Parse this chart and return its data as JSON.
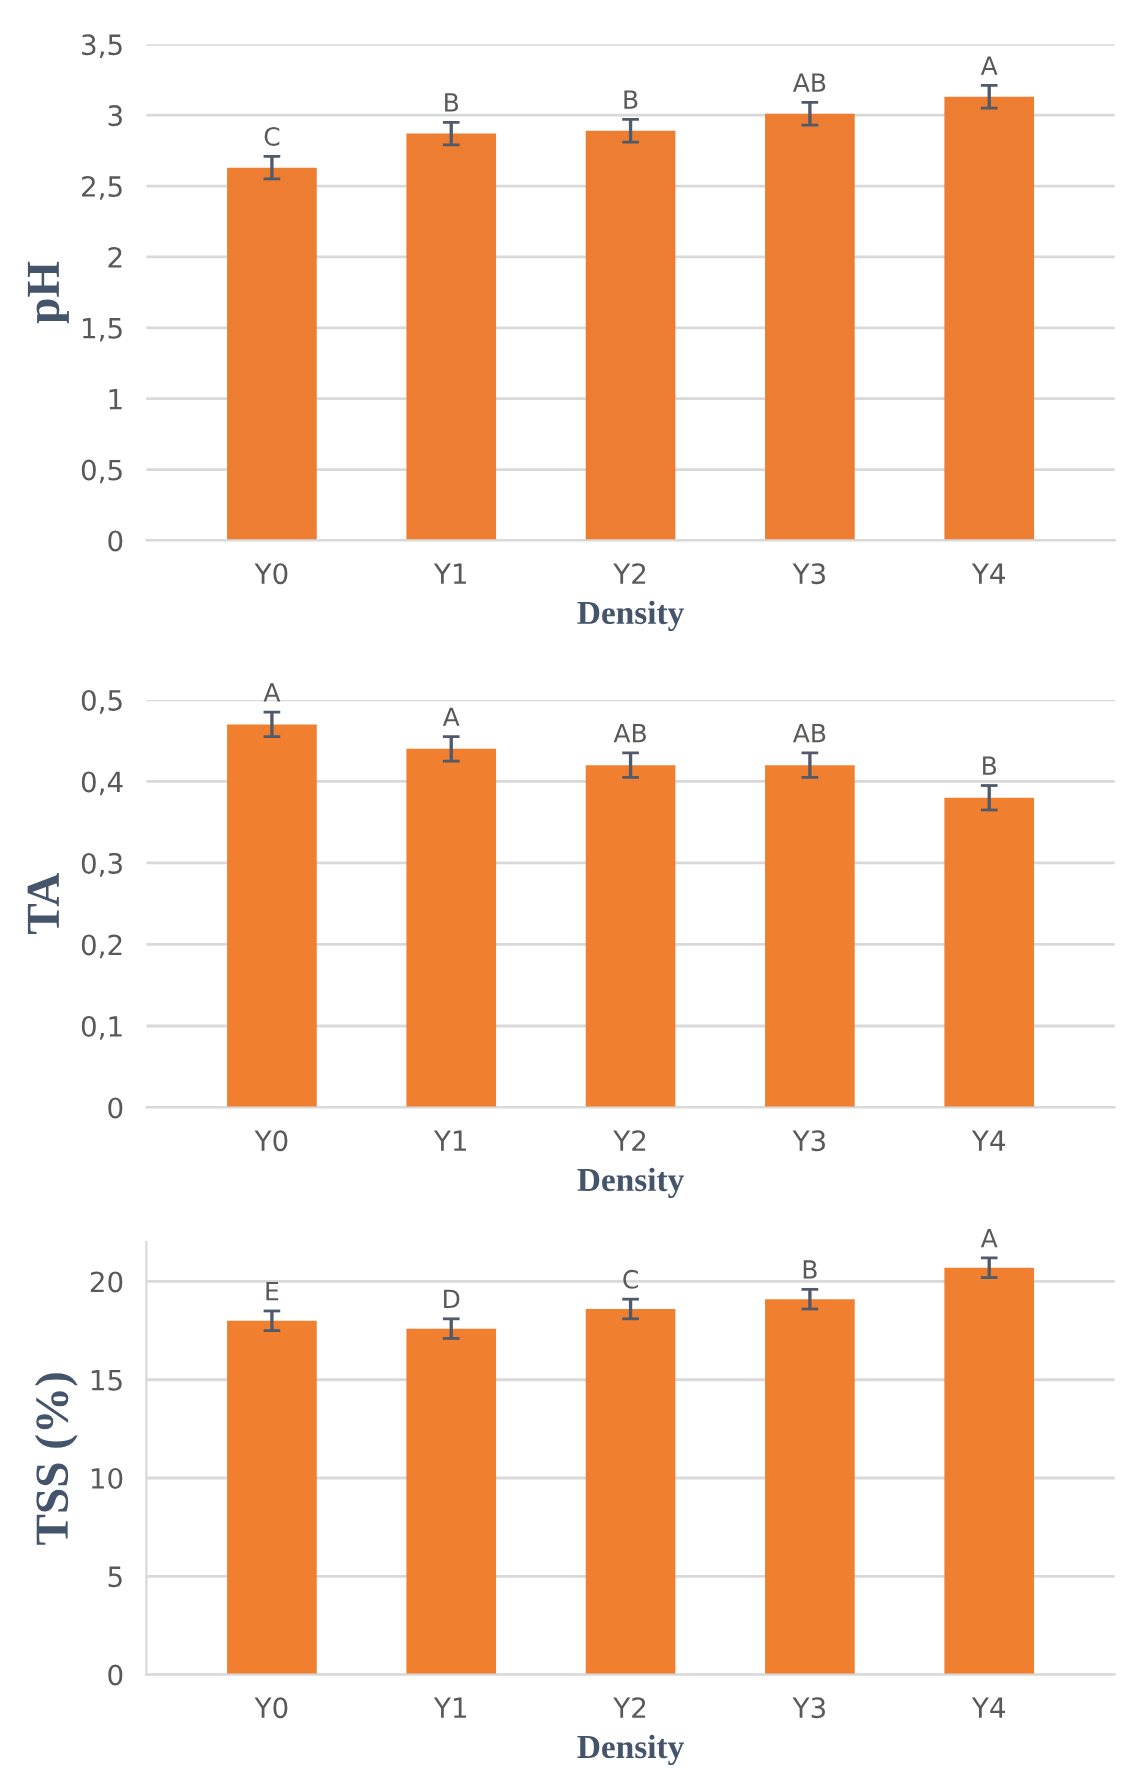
{
  "chart_data": [
    {
      "type": "bar",
      "categories": [
        "Y0",
        "Y1",
        "Y2",
        "Y3",
        "Y4"
      ],
      "xlabel": "Density",
      "ylabel": "pH",
      "color": "#ed7d31",
      "values": [
        2.63,
        2.87,
        2.89,
        3.01,
        3.13
      ],
      "errors": [
        0.08,
        0.08,
        0.08,
        0.08,
        0.08
      ],
      "ylim": [
        0,
        3.5
      ],
      "yticks": [
        0,
        {
          "value": 0.5,
          "label": "0,5"
        },
        1,
        {
          "value": 1.5,
          "label": "1,5"
        },
        2,
        {
          "value": 2.5,
          "label": "2,5"
        },
        3,
        {
          "value": 3.5,
          "label": "3,5"
        }
      ],
      "grid": "y",
      "annotations": [
        {
          "text": "C",
          "x": "Y0",
          "y": 2.71
        },
        {
          "text": "B",
          "x": "Y1",
          "y": 2.95
        },
        {
          "text": "B",
          "x": "Y2",
          "y": 2.97
        },
        {
          "text": "AB",
          "x": "Y3",
          "y": 3.09
        },
        {
          "text": "A",
          "x": "Y4",
          "y": 3.21
        }
      ]
    },
    {
      "type": "bar",
      "categories": [
        "Y0",
        "Y1",
        "Y2",
        "Y3",
        "Y4"
      ],
      "xlabel": "Density",
      "ylabel": "TA",
      "color": "#f07f2f",
      "values": [
        0.47,
        0.44,
        0.42,
        0.42,
        0.38
      ],
      "errors": [
        0.015,
        0.015,
        0.015,
        0.015,
        0.015
      ],
      "ylim": [
        0,
        0.5
      ],
      "yticks": [
        0,
        {
          "value": 0.1,
          "label": "0,1"
        },
        {
          "value": 0.2,
          "label": "0,2"
        },
        {
          "value": 0.3,
          "label": "0,3"
        },
        {
          "value": 0.4,
          "label": "0,4"
        },
        {
          "value": 0.5,
          "label": "0,5"
        }
      ],
      "grid": "y",
      "annotations": [
        {
          "text": "A",
          "x": "Y0",
          "y": 0.485
        },
        {
          "text": "A",
          "x": "Y1",
          "y": 0.455
        },
        {
          "text": "AB",
          "x": "Y2",
          "y": 0.435
        },
        {
          "text": "AB",
          "x": "Y3",
          "y": 0.435
        },
        {
          "text": "B",
          "x": "Y4",
          "y": 0.395
        }
      ]
    },
    {
      "type": "bar",
      "categories": [
        "Y0",
        "Y1",
        "Y2",
        "Y3",
        "Y4"
      ],
      "xlabel": "Density",
      "ylabel": "TSS (%)",
      "color": "#f07f2f",
      "values": [
        18.0,
        17.6,
        18.6,
        19.1,
        20.7
      ],
      "errors": [
        0.5,
        0.5,
        0.5,
        0.5,
        0.5
      ],
      "ylim": [
        0,
        22
      ],
      "yticks": [
        0,
        5,
        10,
        15,
        20
      ],
      "grid": "y",
      "annotations": [
        {
          "text": "E",
          "x": "Y0",
          "y": 18.5
        },
        {
          "text": "D",
          "x": "Y1",
          "y": 18.1
        },
        {
          "text": "C",
          "x": "Y2",
          "y": 19.1
        },
        {
          "text": "B",
          "x": "Y3",
          "y": 19.6
        },
        {
          "text": "A",
          "x": "Y4",
          "y": 21.2
        }
      ]
    }
  ]
}
